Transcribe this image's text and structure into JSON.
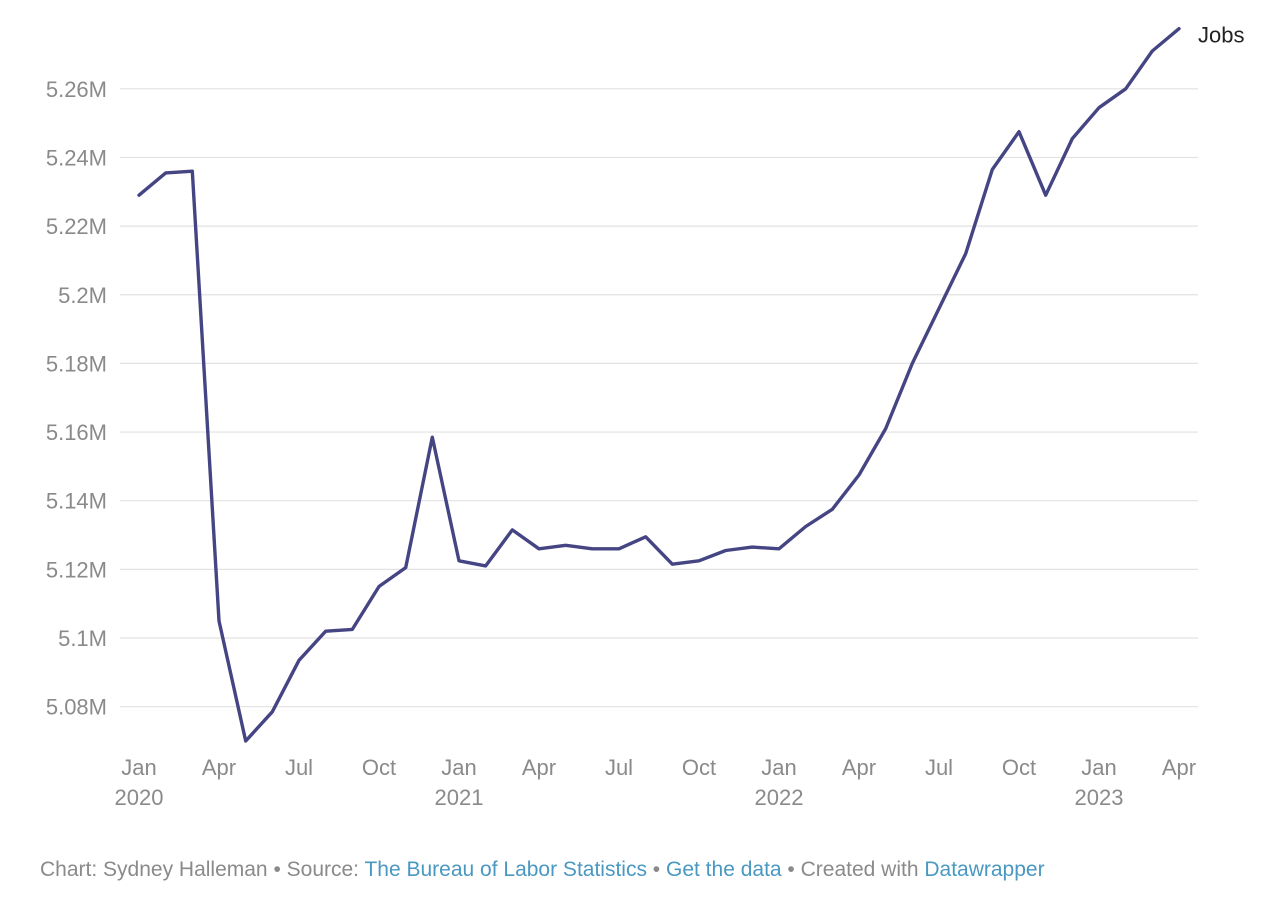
{
  "chart_data": {
    "type": "line",
    "x": [
      "2020-01",
      "2020-02",
      "2020-03",
      "2020-04",
      "2020-05",
      "2020-06",
      "2020-07",
      "2020-08",
      "2020-09",
      "2020-10",
      "2020-11",
      "2020-12",
      "2021-01",
      "2021-02",
      "2021-03",
      "2021-04",
      "2021-05",
      "2021-06",
      "2021-07",
      "2021-08",
      "2021-09",
      "2021-10",
      "2021-11",
      "2021-12",
      "2022-01",
      "2022-02",
      "2022-03",
      "2022-04",
      "2022-05",
      "2022-06",
      "2022-07",
      "2022-08",
      "2022-09",
      "2022-10",
      "2022-11",
      "2022-12",
      "2023-01",
      "2023-02",
      "2023-03",
      "2023-04"
    ],
    "series": [
      {
        "name": "Jobs",
        "color": "#454584",
        "values": [
          5229000,
          5235500,
          5236000,
          5105000,
          5070000,
          5078500,
          5093500,
          5102000,
          5102500,
          5115000,
          5120500,
          5158500,
          5122500,
          5121000,
          5131500,
          5126000,
          5127000,
          5126000,
          5126000,
          5129500,
          5121500,
          5122500,
          5125500,
          5126500,
          5126000,
          5132500,
          5137500,
          5147500,
          5161000,
          5180000,
          5196000,
          5212000,
          5236500,
          5247500,
          5229000,
          5245500,
          5254500,
          5260000,
          5271000,
          5277500
        ]
      }
    ],
    "ylim": [
      5070000,
      5278000
    ],
    "yticks": [
      5080000,
      5100000,
      5120000,
      5140000,
      5160000,
      5180000,
      5200000,
      5220000,
      5240000,
      5260000
    ],
    "ytick_labels": [
      "5.08M",
      "5.1M",
      "5.12M",
      "5.14M",
      "5.16M",
      "5.18M",
      "5.2M",
      "5.22M",
      "5.24M",
      "5.26M"
    ],
    "xtick_positions": [
      0,
      3,
      6,
      9,
      12,
      15,
      18,
      21,
      24,
      27,
      30,
      33,
      36,
      39
    ],
    "xtick_labels": [
      "Jan",
      "Apr",
      "Jul",
      "Oct",
      "Jan",
      "Apr",
      "Jul",
      "Oct",
      "Jan",
      "Apr",
      "Jul",
      "Oct",
      "Jan",
      "Apr"
    ],
    "year_labels": [
      {
        "index": 0,
        "label": "2020"
      },
      {
        "index": 12,
        "label": "2021"
      },
      {
        "index": 24,
        "label": "2022"
      },
      {
        "index": 36,
        "label": "2023"
      }
    ],
    "grid": true,
    "legend": "end-of-line label"
  },
  "footer": {
    "chart_by": "Chart: Sydney Halleman",
    "sep1": " • ",
    "source_prefix": "Source: ",
    "source_link": "The Bureau of Labor Statistics",
    "sep2": " • ",
    "data_link": "Get the data",
    "sep3": " • ",
    "created_prefix": "Created with ",
    "created_link": "Datawrapper"
  }
}
